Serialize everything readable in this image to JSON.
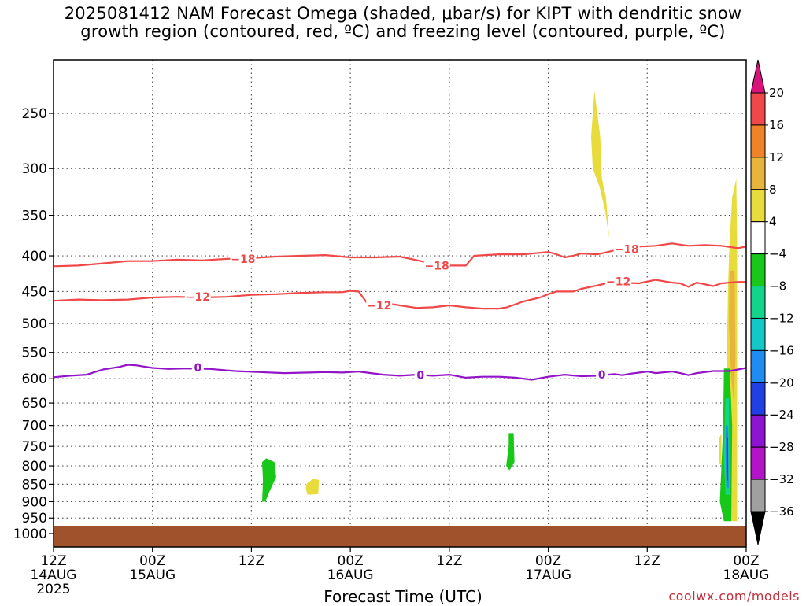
{
  "title": {
    "line1": "2025081412 NAM Forecast Omega (shaded, μbar/s) for KIPT with dendritic snow",
    "line2": "growth region (contoured, red, ºC) and freezing level (contoured, purple, ºC)"
  },
  "xlabel": "Forecast Time (UTC)",
  "credit": "coolwx.com/models",
  "chart_data": {
    "type": "heatmap",
    "y_axis": {
      "scale": "log-pressure",
      "inverted": true,
      "ticks": [
        250,
        300,
        350,
        400,
        450,
        500,
        550,
        600,
        650,
        700,
        750,
        800,
        850,
        900,
        950,
        1000
      ]
    },
    "x_axis": {
      "range_hours": [
        0,
        84
      ],
      "ticks": [
        {
          "h": 0,
          "line1": "12Z",
          "line2": "14AUG",
          "line3": "2025"
        },
        {
          "h": 12,
          "line1": "00Z",
          "line2": "15AUG",
          "line3": ""
        },
        {
          "h": 24,
          "line1": "12Z",
          "line2": "",
          "line3": ""
        },
        {
          "h": 36,
          "line1": "00Z",
          "line2": "16AUG",
          "line3": ""
        },
        {
          "h": 48,
          "line1": "12Z",
          "line2": "",
          "line3": ""
        },
        {
          "h": 60,
          "line1": "00Z",
          "line2": "17AUG",
          "line3": ""
        },
        {
          "h": 72,
          "line1": "12Z",
          "line2": "",
          "line3": ""
        },
        {
          "h": 84,
          "line1": "00Z",
          "line2": "18AUG",
          "line3": ""
        }
      ]
    },
    "grid": "dotted",
    "colorbar": {
      "labels": [
        "20",
        "16",
        "12",
        "8",
        "4",
        "-4",
        "-8",
        "-12",
        "-16",
        "-20",
        "-24",
        "-28",
        "-32",
        "-36"
      ],
      "colors": [
        "#d8147a",
        "#f04848",
        "#f08228",
        "#e8b43c",
        "#e8dc3c",
        "#ffffff",
        "#18c818",
        "#14d48c",
        "#14c8c8",
        "#1e8cf0",
        "#2040e6",
        "#8c14d2",
        "#b414c8",
        "#a0a0a0",
        "#000000"
      ]
    },
    "contours": [
      {
        "level": "-18",
        "color": "#f04848",
        "points": [
          [
            0,
            414
          ],
          [
            3,
            413
          ],
          [
            6,
            410
          ],
          [
            9,
            407
          ],
          [
            12,
            407
          ],
          [
            15,
            405
          ],
          [
            18,
            406
          ],
          [
            21,
            404
          ],
          [
            24,
            403
          ],
          [
            27,
            401
          ],
          [
            30,
            400
          ],
          [
            33,
            399
          ],
          [
            36,
            402
          ],
          [
            39,
            402
          ],
          [
            42,
            401
          ],
          [
            45,
            408
          ],
          [
            48,
            413
          ],
          [
            50,
            413
          ],
          [
            51,
            400
          ],
          [
            54,
            398
          ],
          [
            57,
            398
          ],
          [
            60,
            395
          ],
          [
            61,
            398
          ],
          [
            62,
            402
          ],
          [
            63,
            400
          ],
          [
            64,
            397
          ],
          [
            66,
            398
          ],
          [
            68,
            393
          ],
          [
            70,
            392
          ],
          [
            71,
            388
          ],
          [
            73,
            387
          ],
          [
            75,
            384
          ],
          [
            77,
            387
          ],
          [
            79,
            386
          ],
          [
            81,
            387
          ],
          [
            83,
            390
          ],
          [
            84,
            388
          ]
        ],
        "labels": [
          [
            23,
            404
          ],
          [
            46.5,
            413
          ],
          [
            69.5,
            391
          ]
        ]
      },
      {
        "level": "-12",
        "color": "#f04848",
        "points": [
          [
            0,
            464
          ],
          [
            3,
            462
          ],
          [
            6,
            463
          ],
          [
            9,
            462
          ],
          [
            12,
            459
          ],
          [
            15,
            458
          ],
          [
            18,
            459
          ],
          [
            21,
            458
          ],
          [
            24,
            455
          ],
          [
            27,
            454
          ],
          [
            30,
            452
          ],
          [
            33,
            451
          ],
          [
            35,
            451
          ],
          [
            36,
            449
          ],
          [
            37,
            450
          ],
          [
            38,
            467
          ],
          [
            40,
            467
          ],
          [
            42,
            471
          ],
          [
            44,
            475
          ],
          [
            46,
            474
          ],
          [
            48,
            471
          ],
          [
            50,
            474
          ],
          [
            52,
            476
          ],
          [
            54,
            476
          ],
          [
            55,
            474
          ],
          [
            57,
            465
          ],
          [
            59,
            459
          ],
          [
            60,
            454
          ],
          [
            61,
            450
          ],
          [
            63,
            450
          ],
          [
            64,
            446
          ],
          [
            66,
            441
          ],
          [
            67,
            438
          ],
          [
            69,
            437
          ],
          [
            71,
            438
          ],
          [
            73,
            433
          ],
          [
            75,
            437
          ],
          [
            76,
            438
          ],
          [
            77,
            443
          ],
          [
            78,
            437
          ],
          [
            80,
            442
          ],
          [
            81,
            438
          ],
          [
            83,
            436
          ],
          [
            84,
            436
          ]
        ],
        "labels": [
          [
            17.5,
            458
          ],
          [
            39.5,
            471
          ],
          [
            68.5,
            435
          ]
        ]
      },
      {
        "level": "0",
        "color": "#9314c8",
        "points": [
          [
            0,
            597
          ],
          [
            2,
            594
          ],
          [
            4,
            592
          ],
          [
            6,
            582
          ],
          [
            8,
            577
          ],
          [
            9,
            573
          ],
          [
            10,
            574
          ],
          [
            12,
            579
          ],
          [
            14,
            581
          ],
          [
            16,
            580
          ],
          [
            19,
            581
          ],
          [
            22,
            585
          ],
          [
            25,
            587
          ],
          [
            28,
            589
          ],
          [
            31,
            588
          ],
          [
            33,
            587
          ],
          [
            35,
            588
          ],
          [
            37,
            586
          ],
          [
            40,
            592
          ],
          [
            42,
            594
          ],
          [
            44,
            592
          ],
          [
            46,
            594
          ],
          [
            48,
            592
          ],
          [
            50,
            598
          ],
          [
            52,
            596
          ],
          [
            54,
            596
          ],
          [
            56,
            598
          ],
          [
            58,
            602
          ],
          [
            60,
            596
          ],
          [
            62,
            592
          ],
          [
            64,
            595
          ],
          [
            66,
            594
          ],
          [
            68,
            591
          ],
          [
            69,
            593
          ],
          [
            70,
            590
          ],
          [
            72,
            586
          ],
          [
            73,
            589
          ],
          [
            75,
            586
          ],
          [
            76,
            589
          ],
          [
            77,
            593
          ],
          [
            78,
            589
          ],
          [
            80,
            585
          ],
          [
            82,
            585
          ],
          [
            84,
            579
          ]
        ],
        "labels": [
          [
            17.5,
            578
          ],
          [
            44.5,
            593
          ],
          [
            66.5,
            592
          ]
        ]
      }
    ],
    "omega_shaded_regions": [
      {
        "value_range": "4 to 8",
        "center_h": 65.8,
        "p_top": 232,
        "p_bottom": 378
      },
      {
        "value_range": "-4 to -8",
        "center_h": 26.3,
        "p_top": 780,
        "p_bottom": 900
      },
      {
        "value_range": "4 to 8",
        "center_h": 31.4,
        "p_top": 835,
        "p_bottom": 880
      },
      {
        "value_range": "-4 to -8",
        "center_h": 55.4,
        "p_top": 718,
        "p_bottom": 812
      },
      {
        "value_range": "4 to 8",
        "center_h": 82.2,
        "p_top": 320,
        "p_bottom": 960
      },
      {
        "value_range": "8 to 12",
        "center_h": 82.5,
        "p_top": 430,
        "p_bottom": 650
      },
      {
        "value_range": "-4 to -28",
        "center_h": 81.7,
        "p_top": 580,
        "p_bottom": 960
      }
    ]
  }
}
